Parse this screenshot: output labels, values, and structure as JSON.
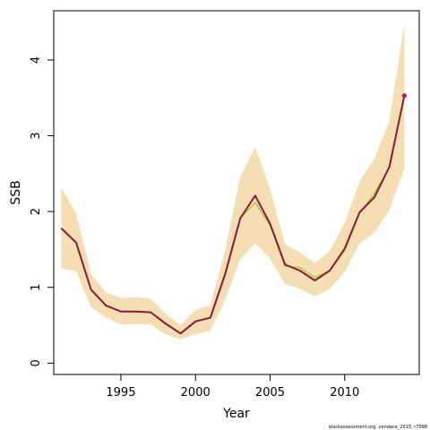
{
  "chart_data": {
    "type": "line",
    "xlabel": "Year",
    "ylabel": "SSB",
    "xlim": [
      1990.5,
      2015.0
    ],
    "ylim": [
      -0.15,
      4.65
    ],
    "x_ticks": [
      1995,
      2000,
      2005,
      2010
    ],
    "y_ticks": [
      0,
      1,
      2,
      3,
      4
    ],
    "grid": false,
    "x": [
      1991,
      1992,
      1993,
      1994,
      1995,
      1996,
      1997,
      1998,
      1999,
      2000,
      2001,
      2002,
      2003,
      2004,
      2005,
      2006,
      2007,
      2008,
      2009,
      2010,
      2011,
      2012,
      2013,
      2014
    ],
    "band": {
      "upper": [
        2.32,
        1.98,
        1.18,
        0.93,
        0.86,
        0.87,
        0.85,
        0.65,
        0.5,
        0.7,
        0.76,
        1.5,
        2.46,
        2.85,
        2.3,
        1.57,
        1.46,
        1.32,
        1.48,
        1.85,
        2.4,
        2.7,
        3.2,
        4.48
      ],
      "lower": [
        1.25,
        1.21,
        0.74,
        0.6,
        0.51,
        0.51,
        0.51,
        0.38,
        0.31,
        0.38,
        0.43,
        0.84,
        1.37,
        1.58,
        1.38,
        1.04,
        0.98,
        0.88,
        0.98,
        1.2,
        1.58,
        1.72,
        2.02,
        2.57
      ],
      "color": "#f5deb3"
    },
    "series": [
      {
        "values": [
          1.78,
          1.59,
          0.97,
          0.76,
          0.68,
          0.68,
          0.67,
          0.53,
          0.4,
          0.55,
          0.6,
          1.2,
          1.91,
          2.12,
          1.82,
          1.28,
          1.26,
          1.13,
          1.22,
          1.48,
          1.98,
          2.24,
          2.58,
          3.52
        ],
        "color": "#9acd32"
      },
      {
        "values": [
          1.78,
          1.59,
          0.97,
          0.76,
          0.68,
          0.68,
          0.67,
          0.52,
          0.39,
          0.55,
          0.6,
          1.18,
          1.91,
          2.21,
          1.84,
          1.3,
          1.22,
          1.09,
          1.22,
          1.51,
          1.99,
          2.19,
          2.59,
          3.53
        ],
        "color": "#8b1a3a"
      }
    ],
    "end_point": {
      "x": 2014,
      "y": 3.53,
      "color": "#c0166e"
    }
  },
  "credit": "stockassessment.org,  vendace_2015, r7098"
}
